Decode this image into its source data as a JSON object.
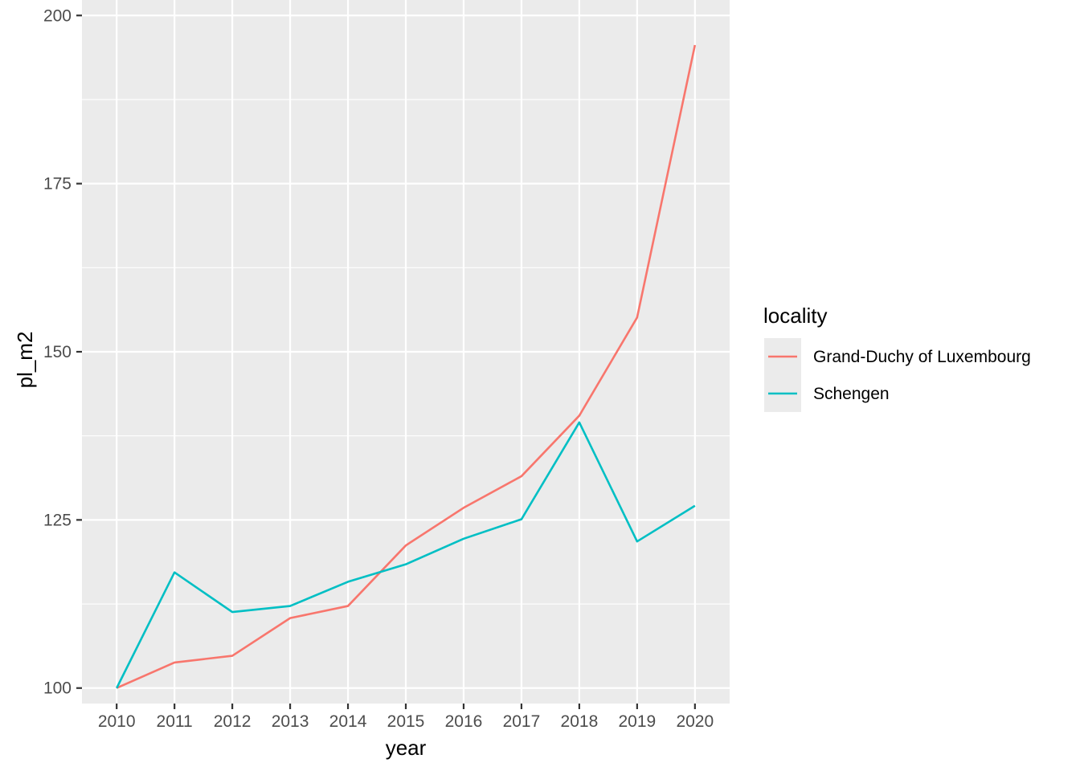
{
  "chart_data": {
    "type": "line",
    "title": "",
    "xlabel": "year",
    "ylabel": "pl_m2",
    "x": [
      2010,
      2011,
      2012,
      2013,
      2014,
      2015,
      2016,
      2017,
      2018,
      2019,
      2020
    ],
    "x_ticks": [
      "2010",
      "2011",
      "2012",
      "2013",
      "2014",
      "2015",
      "2016",
      "2017",
      "2018",
      "2019",
      "2020"
    ],
    "y_ticks": [
      100,
      125,
      150,
      175,
      200
    ],
    "ylim": [
      97.7,
      202.3
    ],
    "grid": true,
    "legend": {
      "title": "locality",
      "placement": "right"
    },
    "series": [
      {
        "name": "Grand-Duchy of Luxembourg",
        "color": "#F8766D",
        "values": [
          100,
          103.8,
          104.8,
          110.4,
          112.2,
          121.2,
          126.8,
          131.5,
          140.5,
          155.1,
          195.6
        ]
      },
      {
        "name": "Schengen",
        "color": "#00BFC4",
        "values": [
          100,
          117.2,
          111.3,
          112.2,
          115.8,
          118.4,
          122.2,
          125.1,
          139.5,
          121.8,
          127.1
        ]
      }
    ]
  }
}
